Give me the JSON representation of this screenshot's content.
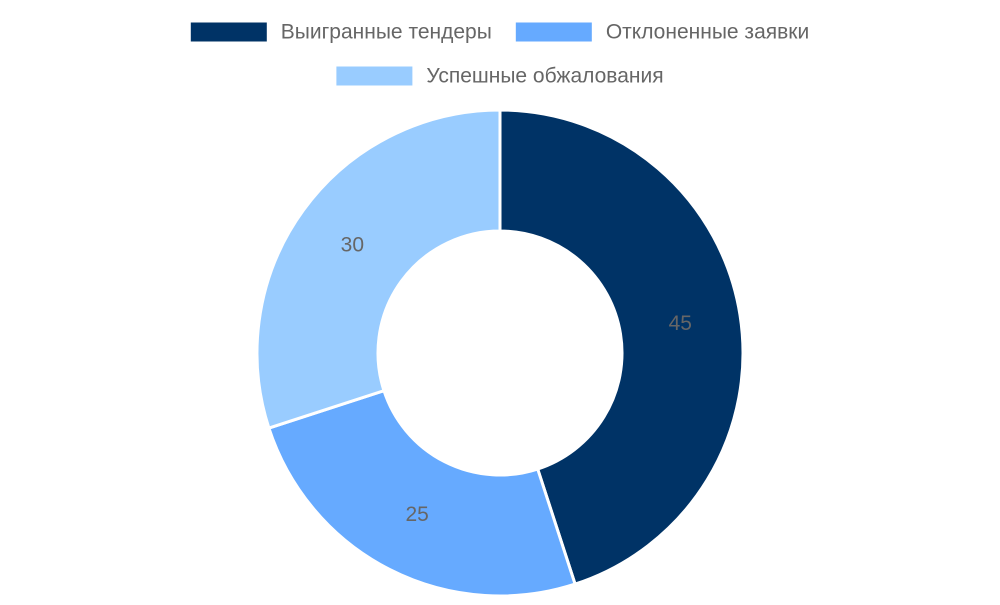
{
  "chart_data": {
    "type": "doughnut",
    "categories": [
      "Выигранные тендеры",
      "Отклоненные заявки",
      "Успешные обжалования"
    ],
    "values": [
      45,
      25,
      30
    ],
    "colors": [
      "#003366",
      "#66aaff",
      "#99ccff"
    ],
    "legend": "top"
  }
}
